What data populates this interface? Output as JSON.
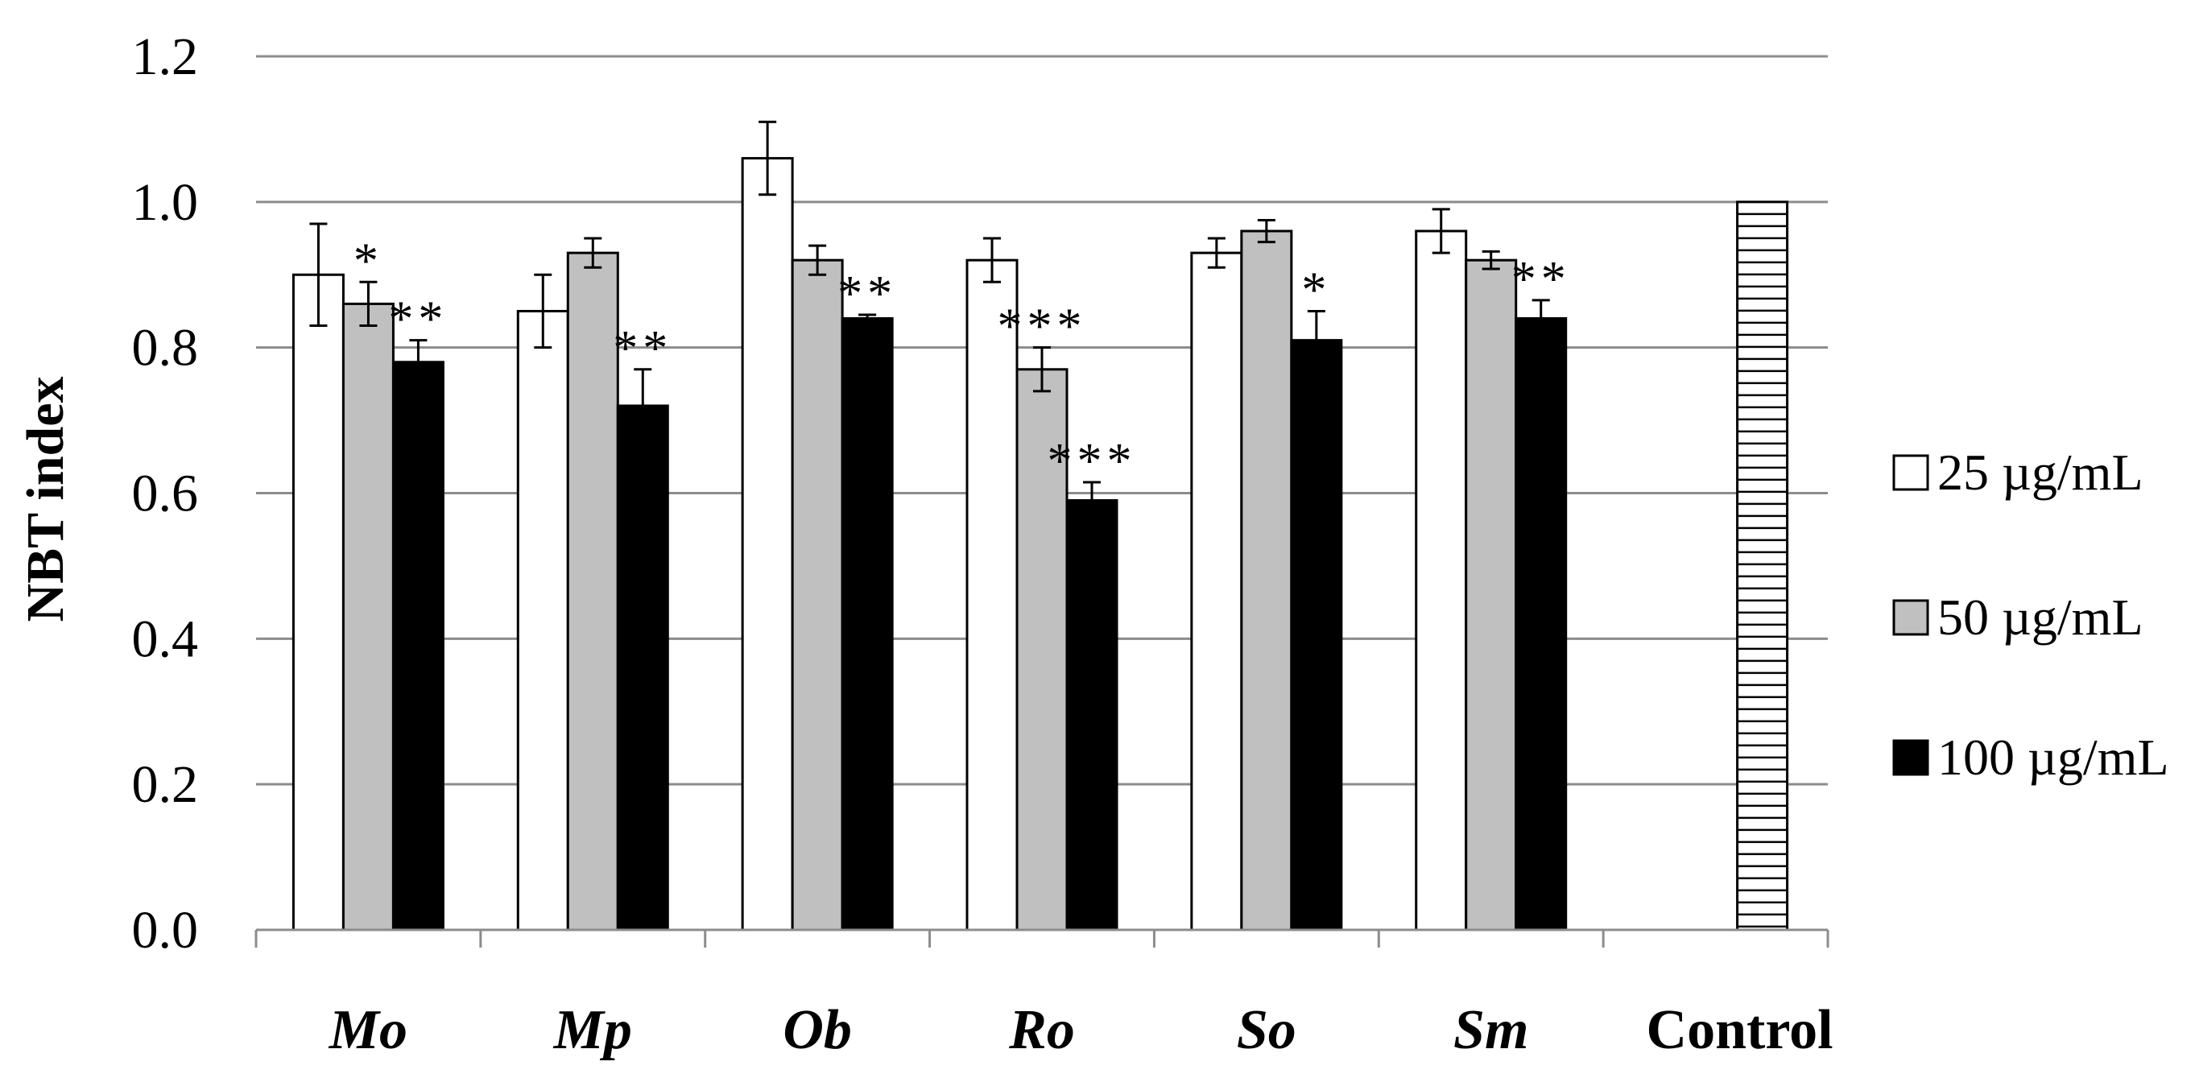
{
  "chart_data": {
    "type": "bar",
    "title": "",
    "xlabel": "",
    "ylabel": "NBT index",
    "ylim": [
      0,
      1.2
    ],
    "yticks": [
      "0.0",
      "0.2",
      "0.4",
      "0.6",
      "0.8",
      "1.0",
      "1.2"
    ],
    "grid": true,
    "legend_position": "right",
    "categories": [
      "Mo",
      "Mp",
      "Ob",
      "Ro",
      "So",
      "Sm",
      "Control"
    ],
    "series": [
      {
        "name": "25 µg/mL",
        "color": "#ffffff",
        "values": [
          0.9,
          0.85,
          1.06,
          0.92,
          0.93,
          0.96,
          null
        ],
        "errors": [
          0.07,
          0.05,
          0.05,
          0.03,
          0.02,
          0.03,
          null
        ],
        "significance": [
          "",
          "",
          "",
          "",
          "",
          "",
          ""
        ]
      },
      {
        "name": "50 µg/mL",
        "color": "#c0c0c0",
        "values": [
          0.86,
          0.93,
          0.92,
          0.77,
          0.96,
          0.92,
          null
        ],
        "errors": [
          0.03,
          0.02,
          0.02,
          0.03,
          0.015,
          0.012,
          null
        ],
        "significance": [
          "*",
          "",
          "",
          "***",
          "",
          "",
          ""
        ]
      },
      {
        "name": "100 µg/mL",
        "color": "#000000",
        "values": [
          0.78,
          0.72,
          0.84,
          0.59,
          0.81,
          0.84,
          null
        ],
        "errors": [
          0.03,
          0.05,
          0.005,
          0.025,
          0.04,
          0.025,
          null
        ],
        "significance": [
          "**",
          "**",
          "**",
          "***",
          "*",
          "**",
          ""
        ]
      }
    ],
    "control": {
      "label": "Control",
      "value": 1.0,
      "pattern": "horizontal-stripes"
    }
  }
}
